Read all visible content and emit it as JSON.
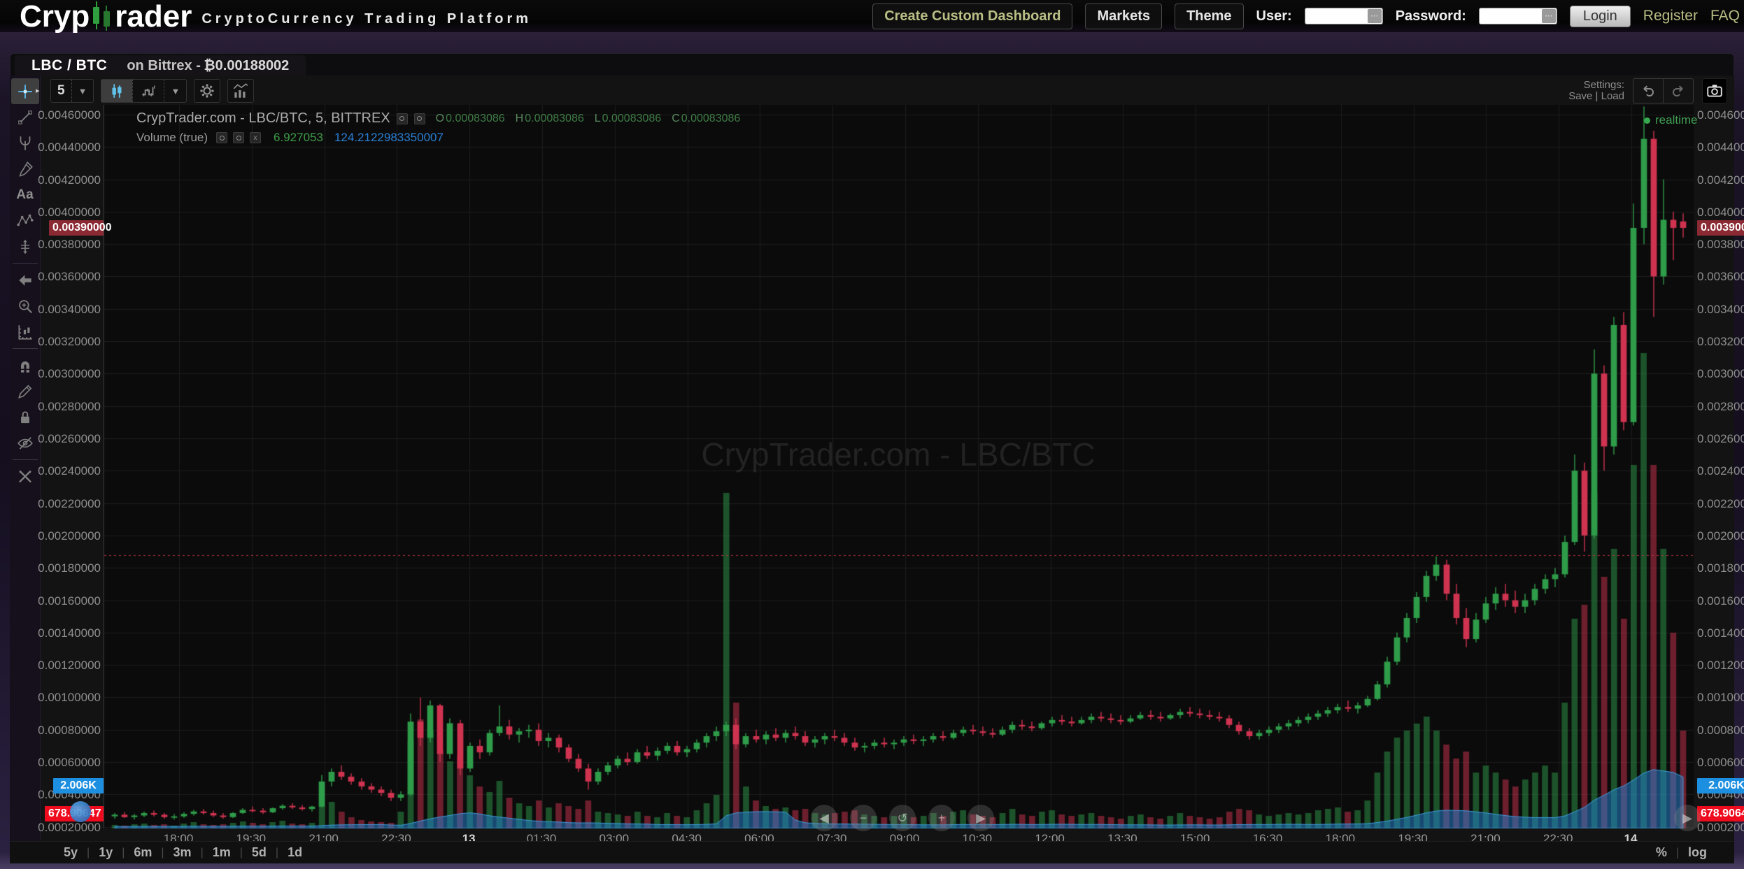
{
  "header": {
    "logo_part1": "Cryp",
    "logo_part2": "rader",
    "subtitle": "CryptoCurrency Trading Platform",
    "create_dashboard": "Create Custom Dashboard",
    "markets": "Markets",
    "theme": "Theme",
    "user_label": "User:",
    "password_label": "Password:",
    "login": "Login",
    "register": "Register",
    "faq": "FAQ"
  },
  "tabbar": {
    "pair": "LBC / BTC",
    "exchange": "on Bittrex -",
    "price": "₿0.00188002"
  },
  "toolbar": {
    "interval": "5",
    "settings_label": "Settings:",
    "save": "Save",
    "load": "Load"
  },
  "legend": {
    "title": "CrypTrader.com - LBC/BTC, 5, BITTREX",
    "o_label": "O",
    "open": "0.00083086",
    "h_label": "H",
    "high": "0.00083086",
    "l_label": "L",
    "low": "0.00083086",
    "c_label": "C",
    "close": "0.00083086",
    "indicator": "Volume (true)",
    "vol_value": "6.927053",
    "vol_ma": "124.2122983350007",
    "realtime": "realtime"
  },
  "tags": {
    "last_price": "0.00390000",
    "vol_blue": "2.006K",
    "vol_red": "678.90647"
  },
  "watermark": "CrypTrader.com - LBC/BTC",
  "footer": {
    "ranges": [
      "5y",
      "1y",
      "6m",
      "3m",
      "1m",
      "5d",
      "1d"
    ],
    "percent": "%",
    "log": "log"
  },
  "left_toolbar": [
    "crosshair",
    "trend-line",
    "pitchfork",
    "brush",
    "text",
    "pattern",
    "forecast",
    "arrow",
    "zoom-in",
    "measure",
    "magnet",
    "drawing-mode",
    "lock",
    "hide-drawings",
    "remove-tools"
  ],
  "chart_data": {
    "type": "candlestick",
    "title": "CrypTrader.com - LBC/BTC, 5, BITTREX",
    "symbol": "LBC/BTC",
    "exchange": "BITTREX",
    "interval_minutes": 5,
    "last_price": 0.0039,
    "price_line": 0.00188,
    "ylim": [
      0.00019,
      0.00466
    ],
    "y_ticks": [
      "0.00460000",
      "0.00440000",
      "0.00420000",
      "0.00400000",
      "0.00380000",
      "0.00360000",
      "0.00340000",
      "0.00320000",
      "0.00300000",
      "0.00280000",
      "0.00260000",
      "0.00240000",
      "0.00220000",
      "0.00200000",
      "0.00180000",
      "0.00160000",
      "0.00140000",
      "0.00120000",
      "0.00100000",
      "0.00080000",
      "0.00060000",
      "0.00040000",
      "0.00020000"
    ],
    "x_labels": [
      "18:00",
      "19:30",
      "21:00",
      "22:30",
      "13",
      "01:30",
      "03:00",
      "04:30",
      "06:00",
      "07:30",
      "09:00",
      "10:30",
      "12:00",
      "13:30",
      "15:00",
      "16:30",
      "18:00",
      "19:30",
      "21:00",
      "22:30",
      "14"
    ],
    "tag_prices": {
      "last": 0.0039,
      "blue": 0.000453,
      "red": 0.000281
    },
    "price_scale": 1e-06,
    "colors": {
      "up": "#2e9c49",
      "down": "#cf3350",
      "vol_up": "rgba(46,156,73,0.5)",
      "vol_down": "rgba(207,51,80,0.5)",
      "ma_fill": "rgba(36,125,200,0.55)",
      "ma_line": "#3f9fe0",
      "price_line": "#b03040",
      "grid": "#1d1d1d",
      "axis_text": "#8e8e8e"
    },
    "candles": [
      [
        265,
        285,
        250,
        275,
        25
      ],
      [
        275,
        290,
        255,
        260,
        20
      ],
      [
        260,
        280,
        245,
        270,
        30
      ],
      [
        270,
        295,
        260,
        285,
        35
      ],
      [
        285,
        300,
        265,
        275,
        25
      ],
      [
        275,
        285,
        250,
        260,
        30
      ],
      [
        260,
        280,
        245,
        265,
        20
      ],
      [
        265,
        290,
        255,
        280,
        35
      ],
      [
        280,
        305,
        270,
        295,
        45
      ],
      [
        295,
        310,
        275,
        285,
        30
      ],
      [
        285,
        300,
        260,
        270,
        25
      ],
      [
        270,
        285,
        250,
        260,
        30
      ],
      [
        260,
        290,
        255,
        285,
        40
      ],
      [
        285,
        315,
        280,
        305,
        50
      ],
      [
        305,
        325,
        290,
        300,
        40
      ],
      [
        300,
        315,
        280,
        290,
        30
      ],
      [
        290,
        320,
        285,
        315,
        45
      ],
      [
        315,
        340,
        305,
        330,
        55
      ],
      [
        330,
        345,
        310,
        320,
        35
      ],
      [
        320,
        335,
        300,
        310,
        30
      ],
      [
        310,
        330,
        295,
        325,
        40
      ],
      [
        325,
        520,
        320,
        480,
        160
      ],
      [
        480,
        560,
        450,
        540,
        190
      ],
      [
        540,
        580,
        490,
        510,
        120
      ],
      [
        510,
        530,
        460,
        480,
        80
      ],
      [
        480,
        500,
        430,
        450,
        60
      ],
      [
        450,
        470,
        410,
        430,
        50
      ],
      [
        430,
        450,
        390,
        410,
        45
      ],
      [
        410,
        430,
        360,
        380,
        40
      ],
      [
        380,
        420,
        360,
        400,
        120
      ],
      [
        400,
        900,
        390,
        850,
        620
      ],
      [
        850,
        1000,
        700,
        750,
        780
      ],
      [
        750,
        980,
        720,
        950,
        700
      ],
      [
        950,
        960,
        600,
        650,
        560
      ],
      [
        650,
        870,
        620,
        840,
        480
      ],
      [
        840,
        860,
        520,
        560,
        520
      ],
      [
        560,
        720,
        540,
        700,
        380
      ],
      [
        700,
        740,
        620,
        660,
        300
      ],
      [
        660,
        800,
        640,
        780,
        260
      ],
      [
        780,
        950,
        760,
        820,
        340
      ],
      [
        820,
        860,
        740,
        770,
        220
      ],
      [
        770,
        810,
        720,
        790,
        180
      ],
      [
        790,
        830,
        750,
        800,
        160
      ],
      [
        800,
        840,
        700,
        730,
        200
      ],
      [
        730,
        780,
        690,
        750,
        150
      ],
      [
        750,
        770,
        660,
        690,
        180
      ],
      [
        690,
        710,
        600,
        620,
        160
      ],
      [
        620,
        650,
        540,
        560,
        140
      ],
      [
        560,
        590,
        430,
        480,
        200
      ],
      [
        480,
        560,
        460,
        540,
        120
      ],
      [
        540,
        600,
        520,
        580,
        110
      ],
      [
        580,
        640,
        560,
        620,
        100
      ],
      [
        620,
        660,
        580,
        600,
        90
      ],
      [
        600,
        680,
        590,
        660,
        120
      ],
      [
        660,
        700,
        620,
        640,
        90
      ],
      [
        640,
        690,
        610,
        670,
        80
      ],
      [
        670,
        720,
        650,
        700,
        110
      ],
      [
        700,
        730,
        640,
        660,
        90
      ],
      [
        660,
        700,
        630,
        680,
        80
      ],
      [
        680,
        740,
        660,
        720,
        130
      ],
      [
        720,
        780,
        690,
        760,
        180
      ],
      [
        760,
        820,
        730,
        790,
        240
      ],
      [
        790,
        850,
        760,
        830,
        2400
      ],
      [
        830,
        870,
        680,
        710,
        900
      ],
      [
        710,
        780,
        690,
        760,
        300
      ],
      [
        760,
        800,
        720,
        740,
        200
      ],
      [
        740,
        790,
        710,
        770,
        160
      ],
      [
        770,
        810,
        730,
        750,
        140
      ],
      [
        750,
        800,
        720,
        780,
        150
      ],
      [
        780,
        820,
        740,
        760,
        130
      ],
      [
        760,
        790,
        700,
        720,
        140
      ],
      [
        720,
        760,
        690,
        740,
        110
      ],
      [
        740,
        780,
        710,
        760,
        100
      ],
      [
        760,
        800,
        730,
        750,
        110
      ],
      [
        750,
        780,
        700,
        720,
        120
      ],
      [
        720,
        750,
        670,
        690,
        130
      ],
      [
        690,
        720,
        660,
        700,
        100
      ],
      [
        700,
        740,
        680,
        720,
        90
      ],
      [
        720,
        750,
        690,
        710,
        80
      ],
      [
        710,
        740,
        680,
        720,
        90
      ],
      [
        720,
        760,
        700,
        740,
        100
      ],
      [
        740,
        770,
        710,
        730,
        80
      ],
      [
        730,
        760,
        700,
        740,
        90
      ],
      [
        740,
        780,
        720,
        760,
        110
      ],
      [
        760,
        790,
        730,
        750,
        90
      ],
      [
        750,
        800,
        740,
        780,
        120
      ],
      [
        780,
        820,
        760,
        800,
        130
      ],
      [
        800,
        830,
        770,
        790,
        100
      ],
      [
        790,
        820,
        760,
        780,
        90
      ],
      [
        780,
        810,
        750,
        770,
        80
      ],
      [
        770,
        820,
        760,
        800,
        110
      ],
      [
        800,
        850,
        780,
        830,
        140
      ],
      [
        830,
        860,
        800,
        820,
        100
      ],
      [
        820,
        850,
        790,
        810,
        90
      ],
      [
        810,
        850,
        800,
        840,
        120
      ],
      [
        840,
        880,
        820,
        860,
        130
      ],
      [
        860,
        890,
        830,
        850,
        100
      ],
      [
        850,
        880,
        820,
        840,
        90
      ],
      [
        840,
        880,
        830,
        860,
        100
      ],
      [
        860,
        900,
        840,
        880,
        110
      ],
      [
        880,
        910,
        850,
        870,
        90
      ],
      [
        870,
        900,
        840,
        860,
        80
      ],
      [
        860,
        890,
        830,
        850,
        70
      ],
      [
        850,
        890,
        840,
        870,
        90
      ],
      [
        870,
        910,
        860,
        890,
        100
      ],
      [
        890,
        920,
        860,
        880,
        80
      ],
      [
        880,
        910,
        850,
        870,
        70
      ],
      [
        870,
        900,
        860,
        890,
        90
      ],
      [
        890,
        930,
        870,
        910,
        110
      ],
      [
        910,
        940,
        880,
        900,
        90
      ],
      [
        900,
        930,
        870,
        890,
        80
      ],
      [
        890,
        920,
        860,
        880,
        70
      ],
      [
        880,
        910,
        850,
        870,
        80
      ],
      [
        870,
        890,
        810,
        830,
        120
      ],
      [
        830,
        850,
        770,
        790,
        140
      ],
      [
        790,
        810,
        740,
        760,
        130
      ],
      [
        760,
        800,
        740,
        780,
        100
      ],
      [
        780,
        820,
        760,
        800,
        90
      ],
      [
        800,
        840,
        780,
        820,
        100
      ],
      [
        820,
        860,
        800,
        840,
        110
      ],
      [
        840,
        880,
        820,
        860,
        100
      ],
      [
        860,
        900,
        840,
        880,
        110
      ],
      [
        880,
        920,
        860,
        900,
        130
      ],
      [
        900,
        940,
        880,
        920,
        140
      ],
      [
        920,
        960,
        900,
        940,
        150
      ],
      [
        940,
        980,
        910,
        930,
        120
      ],
      [
        930,
        970,
        900,
        950,
        130
      ],
      [
        950,
        1010,
        940,
        990,
        200
      ],
      [
        990,
        1100,
        980,
        1080,
        400
      ],
      [
        1080,
        1250,
        1060,
        1220,
        550
      ],
      [
        1220,
        1400,
        1200,
        1370,
        650
      ],
      [
        1370,
        1520,
        1340,
        1490,
        700
      ],
      [
        1490,
        1650,
        1460,
        1620,
        750
      ],
      [
        1620,
        1780,
        1590,
        1750,
        800
      ],
      [
        1750,
        1870,
        1720,
        1820,
        700
      ],
      [
        1820,
        1850,
        1600,
        1640,
        600
      ],
      [
        1640,
        1700,
        1450,
        1490,
        500
      ],
      [
        1490,
        1550,
        1310,
        1360,
        550
      ],
      [
        1360,
        1520,
        1340,
        1480,
        400
      ],
      [
        1480,
        1620,
        1460,
        1580,
        450
      ],
      [
        1580,
        1680,
        1540,
        1640,
        400
      ],
      [
        1640,
        1700,
        1560,
        1600,
        350
      ],
      [
        1600,
        1660,
        1520,
        1560,
        300
      ],
      [
        1560,
        1640,
        1520,
        1600,
        350
      ],
      [
        1600,
        1700,
        1570,
        1670,
        400
      ],
      [
        1670,
        1760,
        1640,
        1730,
        450
      ],
      [
        1730,
        1800,
        1680,
        1760,
        400
      ],
      [
        1760,
        2000,
        1740,
        1960,
        900
      ],
      [
        1960,
        2500,
        1940,
        2400,
        1500
      ],
      [
        2400,
        2450,
        1900,
        2000,
        1600
      ],
      [
        2000,
        3150,
        1980,
        3000,
        2400
      ],
      [
        3000,
        3050,
        2400,
        2550,
        1800
      ],
      [
        2550,
        3350,
        2500,
        3300,
        2000
      ],
      [
        3300,
        3380,
        2650,
        2700,
        1500
      ],
      [
        2700,
        4050,
        2680,
        3900,
        2600
      ],
      [
        3900,
        4650,
        3800,
        4450,
        3400
      ],
      [
        4450,
        4500,
        3350,
        3600,
        2600
      ],
      [
        3600,
        4200,
        3550,
        3950,
        2000
      ],
      [
        3950,
        4000,
        3700,
        3900,
        1400
      ],
      [
        3940,
        3990,
        3840,
        3900,
        700
      ]
    ]
  }
}
